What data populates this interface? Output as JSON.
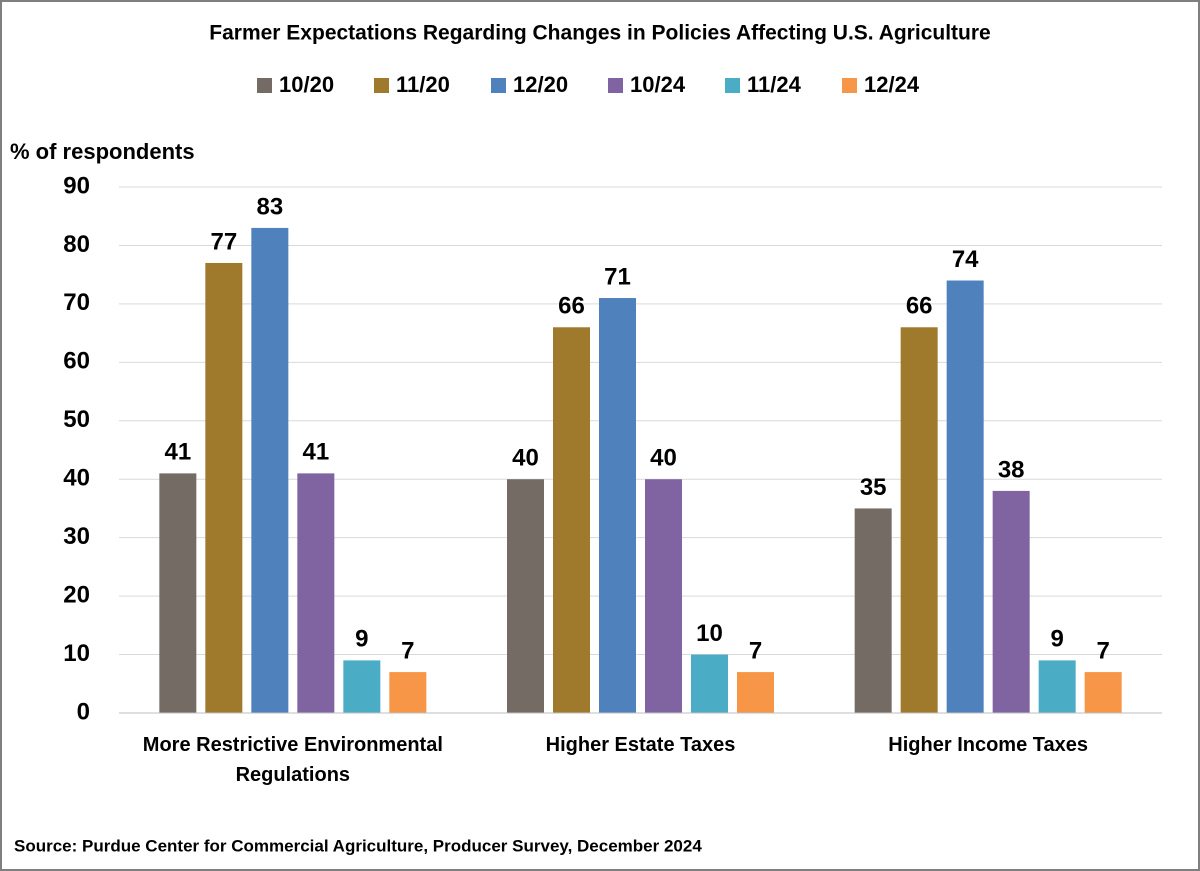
{
  "chart_data": {
    "type": "bar",
    "title": "Farmer Expectations Regarding Changes in Policies Affecting U.S. Agriculture",
    "y_label": "% of respondents",
    "source": "Source: Purdue Center for Commercial Agriculture, Producer Survey, December 2024",
    "categories": [
      "More Restrictive Environmental Regulations",
      "Higher Estate Taxes",
      "Higher Income Taxes"
    ],
    "series": [
      {
        "name": "10/20",
        "color": "#756b65",
        "values": [
          41,
          40,
          35
        ]
      },
      {
        "name": "11/20",
        "color": "#a07a2c",
        "values": [
          77,
          66,
          66
        ]
      },
      {
        "name": "12/20",
        "color": "#4f81bd",
        "values": [
          83,
          71,
          74
        ]
      },
      {
        "name": "10/24",
        "color": "#8064a2",
        "values": [
          41,
          40,
          38
        ]
      },
      {
        "name": "11/24",
        "color": "#4bacc6",
        "values": [
          9,
          10,
          9
        ]
      },
      {
        "name": "12/24",
        "color": "#f79646",
        "values": [
          7,
          7,
          7
        ]
      }
    ],
    "ylim": [
      0,
      90
    ],
    "yticks": [
      0,
      10,
      20,
      30,
      40,
      50,
      60,
      70,
      80,
      90
    ],
    "grid": true,
    "legend": "top"
  }
}
